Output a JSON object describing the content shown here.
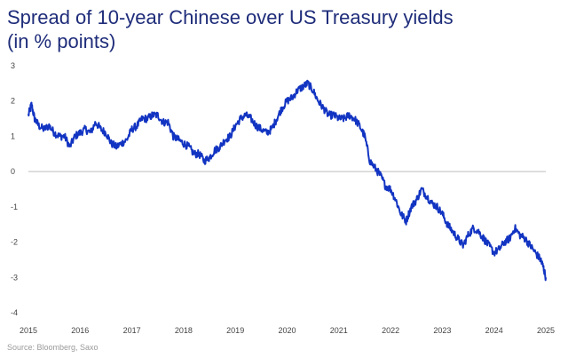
{
  "chart_data": {
    "type": "line",
    "title_lines": [
      "Spread of 10-year Chinese over US Treasury yields",
      "(in % points)"
    ],
    "xlabel": "",
    "ylabel": "",
    "xlim": [
      2015,
      2025
    ],
    "ylim": [
      -4,
      3
    ],
    "x_ticks": [
      "2015",
      "2016",
      "2017",
      "2018",
      "2019",
      "2020",
      "2021",
      "2022",
      "2023",
      "2024",
      "2025"
    ],
    "y_ticks": [
      "3",
      "2",
      "1",
      "0",
      "-1",
      "-2",
      "-3",
      "-4"
    ],
    "zero_line": true,
    "series": [
      {
        "name": "Spread",
        "color": "#1234c2",
        "x": [
          2015.0,
          2015.06,
          2015.12,
          2015.2,
          2015.3,
          2015.4,
          2015.5,
          2015.6,
          2015.7,
          2015.8,
          2015.9,
          2016.0,
          2016.1,
          2016.2,
          2016.3,
          2016.4,
          2016.5,
          2016.6,
          2016.7,
          2016.8,
          2016.9,
          2017.0,
          2017.1,
          2017.2,
          2017.3,
          2017.4,
          2017.5,
          2017.6,
          2017.7,
          2017.8,
          2017.9,
          2018.0,
          2018.1,
          2018.2,
          2018.3,
          2018.4,
          2018.5,
          2018.6,
          2018.7,
          2018.8,
          2018.9,
          2019.0,
          2019.1,
          2019.2,
          2019.3,
          2019.4,
          2019.5,
          2019.6,
          2019.7,
          2019.8,
          2019.9,
          2020.0,
          2020.1,
          2020.2,
          2020.3,
          2020.4,
          2020.5,
          2020.6,
          2020.7,
          2020.8,
          2020.9,
          2021.0,
          2021.1,
          2021.2,
          2021.3,
          2021.4,
          2021.5,
          2021.6,
          2021.7,
          2021.8,
          2021.9,
          2022.0,
          2022.1,
          2022.2,
          2022.3,
          2022.4,
          2022.5,
          2022.6,
          2022.7,
          2022.8,
          2022.9,
          2023.0,
          2023.1,
          2023.2,
          2023.3,
          2023.4,
          2023.5,
          2023.6,
          2023.7,
          2023.8,
          2023.9,
          2024.0,
          2024.1,
          2024.2,
          2024.3,
          2024.4,
          2024.5,
          2024.6,
          2024.7,
          2024.8,
          2024.9,
          2024.95,
          2025.0
        ],
        "y": [
          1.6,
          1.9,
          1.5,
          1.3,
          1.2,
          1.3,
          1.1,
          1.0,
          1.0,
          0.7,
          1.0,
          1.1,
          1.2,
          1.1,
          1.4,
          1.2,
          1.1,
          0.8,
          0.7,
          0.8,
          0.9,
          1.2,
          1.3,
          1.5,
          1.5,
          1.6,
          1.6,
          1.4,
          1.4,
          1.0,
          0.9,
          0.8,
          0.7,
          0.5,
          0.5,
          0.3,
          0.4,
          0.6,
          0.7,
          0.9,
          1.0,
          1.3,
          1.5,
          1.6,
          1.5,
          1.3,
          1.2,
          1.1,
          1.2,
          1.5,
          1.8,
          2.0,
          2.1,
          2.3,
          2.4,
          2.5,
          2.3,
          2.0,
          1.8,
          1.6,
          1.6,
          1.5,
          1.5,
          1.6,
          1.5,
          1.3,
          1.0,
          0.3,
          0.1,
          -0.1,
          -0.4,
          -0.5,
          -0.8,
          -1.2,
          -1.4,
          -1.0,
          -0.8,
          -0.5,
          -0.7,
          -0.9,
          -1.0,
          -1.2,
          -1.5,
          -1.7,
          -1.9,
          -2.1,
          -1.8,
          -1.6,
          -1.7,
          -1.9,
          -2.1,
          -2.3,
          -2.2,
          -2.0,
          -1.9,
          -1.6,
          -1.8,
          -1.9,
          -2.1,
          -2.3,
          -2.5,
          -2.7,
          -3.0
        ]
      }
    ],
    "source": "Source: Bloomberg, Saxo"
  }
}
